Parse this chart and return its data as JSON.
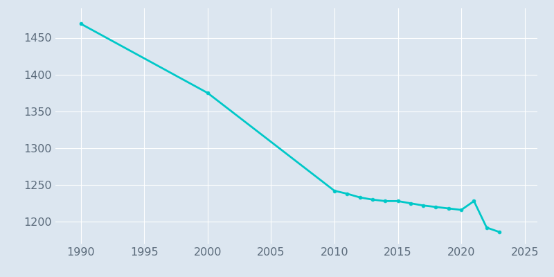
{
  "years": [
    1990,
    2000,
    2010,
    2011,
    2012,
    2013,
    2014,
    2015,
    2016,
    2017,
    2018,
    2019,
    2020,
    2021,
    2022,
    2023
  ],
  "population": [
    1469,
    1375,
    1242,
    1238,
    1233,
    1230,
    1228,
    1228,
    1225,
    1222,
    1220,
    1218,
    1216,
    1228,
    1192,
    1186
  ],
  "line_color": "#00C8C8",
  "bg_color": "#dce6f0",
  "xlim": [
    1988,
    2026
  ],
  "ylim": [
    1170,
    1490
  ],
  "yticks": [
    1200,
    1250,
    1300,
    1350,
    1400,
    1450
  ],
  "xticks": [
    1990,
    1995,
    2000,
    2005,
    2010,
    2015,
    2020,
    2025
  ],
  "grid_color": "#ffffff",
  "linewidth": 2.0,
  "tick_labelsize": 11.5,
  "tick_color": "#5a6a7a"
}
